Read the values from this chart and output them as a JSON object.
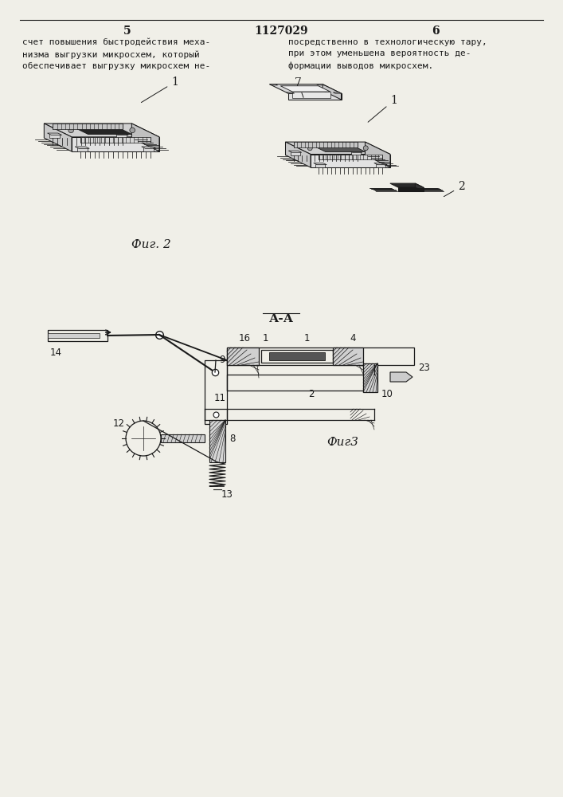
{
  "page_number_left": "5",
  "page_number_center": "1127029",
  "page_number_right": "6",
  "text_left": "счет повышения быстродействия меха-\nнизма выгрузки микросхем, который\nобеспечивает выгрузку микросхем не-",
  "text_right": "посредственно в технологическую тару,\nпри этом уменьшена вероятность де-\nформации выводов микросхем.",
  "fig2_label": "Фиг. 2",
  "fig3_label": "Фиг3",
  "section_label": "А-А",
  "bg_color": "#f0efe8",
  "line_color": "#1a1a1a",
  "text_color": "#1a1a1a",
  "font_size_body": 8.0,
  "font_size_label": 10,
  "font_size_page": 10
}
